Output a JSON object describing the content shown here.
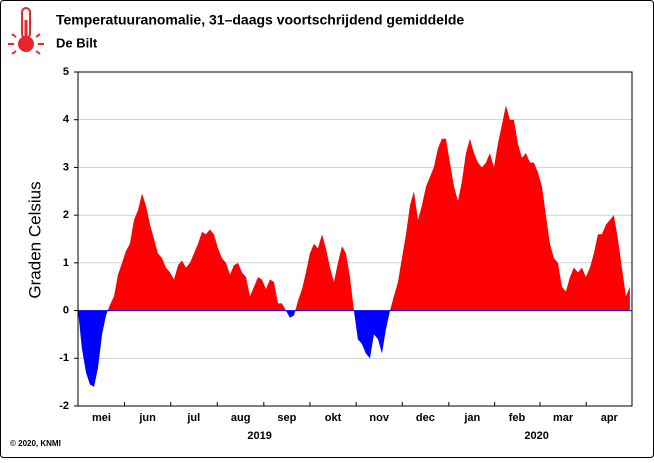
{
  "chart_data": {
    "type": "area",
    "title": "Temperatuuranomalie, 31–daags voortschrijdend gemiddelde",
    "subtitle": "De Bilt",
    "ylabel": "Graden Celsius",
    "footer": "© 2020, KNMI",
    "positive_color": "#ff0000",
    "negative_color": "#0000ff",
    "grid": true,
    "xlim": [
      0,
      366
    ],
    "ylim": [
      -2,
      5
    ],
    "yticks": [
      -2,
      -1,
      0,
      1,
      2,
      3,
      4,
      5
    ],
    "xticks": [
      {
        "value": 15.5,
        "label": "mei"
      },
      {
        "value": 46,
        "label": "jun"
      },
      {
        "value": 76.5,
        "label": "jul"
      },
      {
        "value": 107.5,
        "label": "aug"
      },
      {
        "value": 138,
        "label": "sep"
      },
      {
        "value": 168.5,
        "label": "okt"
      },
      {
        "value": 199,
        "label": "nov"
      },
      {
        "value": 229.5,
        "label": "dec"
      },
      {
        "value": 260.5,
        "label": "jan"
      },
      {
        "value": 290,
        "label": "feb"
      },
      {
        "value": 320.5,
        "label": "mar"
      },
      {
        "value": 351,
        "label": "apr"
      }
    ],
    "year_labels": [
      {
        "value": 120,
        "label": "2019"
      },
      {
        "value": 303,
        "label": "2020"
      }
    ],
    "x": [
      0,
      2.6,
      5.3,
      7.9,
      10.6,
      13.2,
      15.9,
      18.5,
      21.1,
      23.8,
      26.4,
      29.1,
      31.7,
      34.3,
      37.0,
      39.6,
      42.3,
      44.9,
      47.6,
      50.2,
      52.8,
      55.5,
      58.1,
      60.8,
      63.4,
      66.1,
      68.7,
      71.3,
      74.0,
      76.6,
      79.3,
      81.9,
      84.5,
      87.2,
      89.8,
      92.5,
      95.1,
      97.8,
      100.4,
      103.0,
      105.7,
      108.3,
      111.0,
      113.6,
      116.3,
      118.9,
      121.5,
      124.2,
      126.8,
      129.5,
      132.1,
      134.7,
      137.4,
      140.0,
      142.7,
      145.3,
      148.0,
      150.6,
      153.2,
      155.9,
      158.5,
      161.2,
      163.8,
      166.5,
      169.1,
      171.7,
      174.4,
      177.0,
      179.7,
      182.3,
      184.9,
      187.6,
      190.2,
      192.9,
      195.5,
      198.2,
      200.8,
      203.4,
      206.1,
      208.7,
      211.4,
      214.0,
      216.7,
      219.3,
      221.9,
      224.6,
      227.2,
      229.9,
      232.5,
      235.1,
      237.8,
      240.4,
      243.1,
      245.7,
      248.4,
      251.0,
      253.6,
      256.3,
      258.9,
      261.6,
      264.2,
      266.9,
      269.5,
      272.1,
      274.8,
      277.4,
      280.1,
      282.7,
      285.3,
      288.0,
      290.6,
      293.3,
      295.9,
      298.6,
      301.2,
      303.8,
      306.5,
      309.1,
      311.8,
      314.4,
      317.1,
      319.7,
      322.3,
      325.0,
      327.6,
      330.3,
      332.9,
      335.5,
      338.2,
      340.8,
      343.5,
      346.1,
      348.8,
      351.4,
      354.0,
      356.7,
      359.3,
      362.0,
      364.6
    ],
    "values": [
      0,
      -0.8,
      -1.3,
      -1.55,
      -1.6,
      -1.2,
      -0.5,
      -0.1,
      0.12,
      0.3,
      0.75,
      1.0,
      1.25,
      1.4,
      1.9,
      2.1,
      2.45,
      2.2,
      1.8,
      1.5,
      1.2,
      1.1,
      0.9,
      0.8,
      0.65,
      0.95,
      1.05,
      0.9,
      1.0,
      1.2,
      1.4,
      1.65,
      1.6,
      1.7,
      1.6,
      1.3,
      1.1,
      1.0,
      0.75,
      0.95,
      1.0,
      0.8,
      0.7,
      0.3,
      0.5,
      0.7,
      0.65,
      0.45,
      0.65,
      0.6,
      0.15,
      0.15,
      0.0,
      -0.15,
      -0.1,
      0.2,
      0.45,
      0.8,
      1.2,
      1.4,
      1.3,
      1.6,
      1.3,
      0.9,
      0.6,
      1.0,
      1.35,
      1.2,
      0.7,
      0.0,
      -0.6,
      -0.7,
      -0.9,
      -1.0,
      -0.5,
      -0.6,
      -0.9,
      -0.4,
      0.0,
      0.3,
      0.6,
      1.1,
      1.6,
      2.2,
      2.5,
      1.9,
      2.2,
      2.6,
      2.8,
      3.0,
      3.4,
      3.6,
      3.6,
      3.1,
      2.6,
      2.3,
      2.7,
      3.3,
      3.6,
      3.3,
      3.1,
      3.0,
      3.1,
      3.3,
      3.0,
      3.5,
      3.9,
      4.3,
      4.0,
      4.0,
      3.5,
      3.2,
      3.3,
      3.1,
      3.1,
      2.9,
      2.6,
      2.0,
      1.4,
      1.1,
      1.0,
      0.5,
      0.4,
      0.7,
      0.9,
      0.8,
      0.9,
      0.7,
      0.9,
      1.2,
      1.6,
      1.6,
      1.8,
      1.9,
      2.0,
      1.5,
      0.9,
      0.3,
      0.5
    ]
  }
}
